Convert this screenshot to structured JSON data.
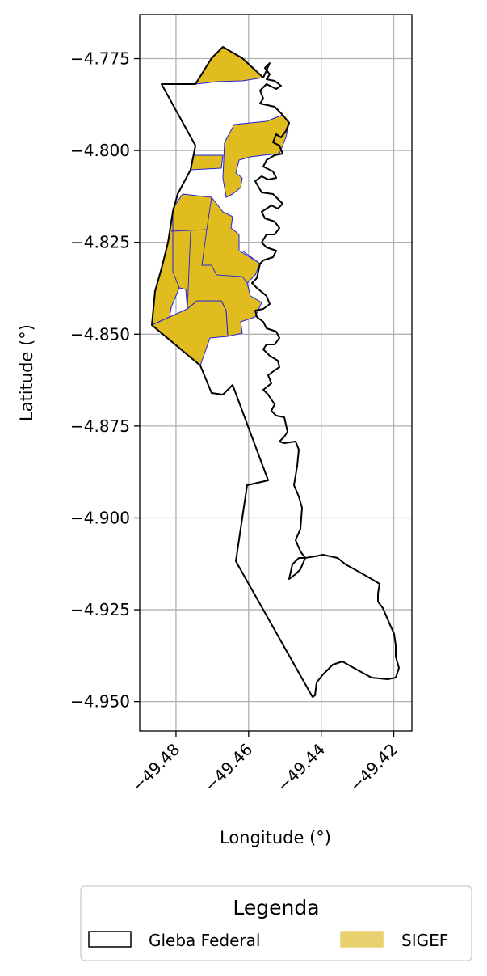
{
  "map": {
    "xlabel": "Longitude (°)",
    "ylabel": "Latitude (°)",
    "xlim": [
      -49.49,
      -49.415
    ],
    "ylim": [
      -4.958,
      -4.763
    ],
    "xticks": [
      {
        "value": -49.48,
        "label": "−49.48"
      },
      {
        "value": -49.46,
        "label": "−49.46"
      },
      {
        "value": -49.44,
        "label": "−49.44"
      },
      {
        "value": -49.42,
        "label": "−49.42"
      }
    ],
    "yticks": [
      {
        "value": -4.775,
        "label": "−4.775"
      },
      {
        "value": -4.8,
        "label": "−4.800"
      },
      {
        "value": -4.825,
        "label": "−4.825"
      },
      {
        "value": -4.85,
        "label": "−4.850"
      },
      {
        "value": -4.875,
        "label": "−4.875"
      },
      {
        "value": -4.9,
        "label": "−4.900"
      },
      {
        "value": -4.925,
        "label": "−4.925"
      },
      {
        "value": -4.95,
        "label": "−4.950"
      }
    ],
    "grid": true,
    "layers": {
      "gleba": {
        "name": "Gleba Federal",
        "fill": "none",
        "edge": "#000000"
      },
      "sigef": {
        "name": "SIGEF",
        "fill": "#e0bc1e",
        "edge": "#2222dd"
      }
    }
  },
  "legend": {
    "title": "Legenda",
    "placement": "bottom-center",
    "items": [
      {
        "label": "Gleba Federal",
        "fill": "#ffffff",
        "edge": "#000000"
      },
      {
        "label": "SIGEF",
        "fill": "#e8d06e",
        "edge": "#e8d06e"
      }
    ]
  }
}
